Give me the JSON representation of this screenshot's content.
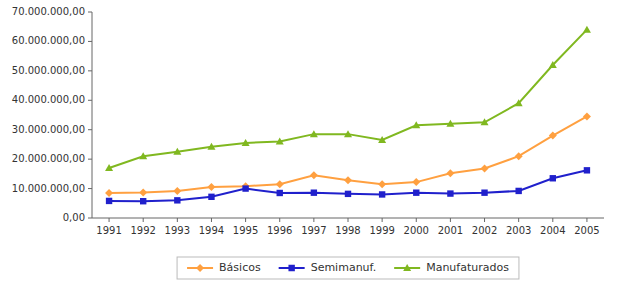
{
  "chart_data": {
    "type": "line",
    "x": [
      1991,
      1992,
      1993,
      1994,
      1995,
      1996,
      1997,
      1998,
      1999,
      2000,
      2001,
      2002,
      2003,
      2004,
      2005
    ],
    "xlim": [
      1990.5,
      2005.5
    ],
    "xticks": [
      1991,
      1992,
      1993,
      1994,
      1995,
      1996,
      1997,
      1998,
      1999,
      2000,
      2001,
      2002,
      2003,
      2004,
      2005
    ],
    "ylim": [
      0,
      70000000
    ],
    "yticks": [
      {
        "value": 0,
        "label": "0,00"
      },
      {
        "value": 10000000,
        "label": "10.000.000,00"
      },
      {
        "value": 20000000,
        "label": "20.000.000,00"
      },
      {
        "value": 30000000,
        "label": "30.000.000,00"
      },
      {
        "value": 40000000,
        "label": "40.000.000,00"
      },
      {
        "value": 50000000,
        "label": "50.000.000,00"
      },
      {
        "value": 60000000,
        "label": "60.000.000,00"
      },
      {
        "value": 70000000,
        "label": "70.000.000,00"
      }
    ],
    "grid": false,
    "legend": "bottom",
    "series": [
      {
        "name": "Básicos",
        "color": "#FFA040",
        "marker": "diamond",
        "values": [
          8500000,
          8700000,
          9200000,
          10500000,
          10800000,
          11500000,
          14500000,
          12800000,
          11500000,
          12200000,
          15200000,
          16800000,
          21000000,
          28000000,
          34500000
        ]
      },
      {
        "name": "Semimanuf.",
        "color": "#2020CC",
        "marker": "square",
        "values": [
          5800000,
          5700000,
          6000000,
          7200000,
          10000000,
          8500000,
          8600000,
          8200000,
          8000000,
          8600000,
          8300000,
          8600000,
          9200000,
          13500000,
          16200000
        ]
      },
      {
        "name": "Manufaturados",
        "color": "#80B820",
        "marker": "triangle",
        "values": [
          17000000,
          21000000,
          22500000,
          24200000,
          25500000,
          26000000,
          28500000,
          28500000,
          26500000,
          31500000,
          32000000,
          32500000,
          39000000,
          52000000,
          64000000
        ]
      }
    ]
  }
}
